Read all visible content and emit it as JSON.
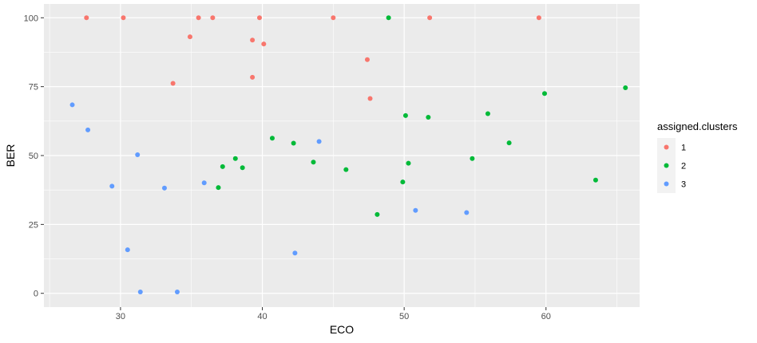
{
  "chart_data": {
    "type": "scatter",
    "xlabel": "ECO",
    "ylabel": "BER",
    "xlim": [
      24.6,
      66.6
    ],
    "ylim": [
      -5,
      105
    ],
    "x_ticks": [
      30,
      40,
      50,
      60
    ],
    "y_ticks": [
      0,
      25,
      50,
      75,
      100
    ],
    "grid": true,
    "legend": {
      "title": "assigned.clusters",
      "position": "right"
    },
    "series": [
      {
        "name": "1",
        "color": "#F8766D",
        "points": [
          [
            27.6,
            100
          ],
          [
            30.2,
            100
          ],
          [
            35.5,
            100
          ],
          [
            36.5,
            100
          ],
          [
            39.8,
            100
          ],
          [
            45.0,
            100
          ],
          [
            51.8,
            100
          ],
          [
            59.5,
            100
          ],
          [
            34.9,
            93.1
          ],
          [
            39.3,
            91.9
          ],
          [
            40.1,
            90.5
          ],
          [
            47.4,
            84.8
          ],
          [
            33.7,
            76.2
          ],
          [
            39.3,
            78.4
          ],
          [
            47.6,
            70.7
          ]
        ]
      },
      {
        "name": "2",
        "color": "#00BA38",
        "points": [
          [
            48.9,
            100
          ],
          [
            65.6,
            74.6
          ],
          [
            59.9,
            72.5
          ],
          [
            50.1,
            64.5
          ],
          [
            51.7,
            63.9
          ],
          [
            55.9,
            65.2
          ],
          [
            40.7,
            56.3
          ],
          [
            42.2,
            54.5
          ],
          [
            57.4,
            54.6
          ],
          [
            54.8,
            48.9
          ],
          [
            38.1,
            48.9
          ],
          [
            43.6,
            47.6
          ],
          [
            50.3,
            47.2
          ],
          [
            37.2,
            46.0
          ],
          [
            38.6,
            45.6
          ],
          [
            45.9,
            44.9
          ],
          [
            63.5,
            41.1
          ],
          [
            49.9,
            40.4
          ],
          [
            36.9,
            38.4
          ],
          [
            48.1,
            28.6
          ]
        ]
      },
      {
        "name": "3",
        "color": "#619CFF",
        "points": [
          [
            26.6,
            68.4
          ],
          [
            27.7,
            59.3
          ],
          [
            31.2,
            50.3
          ],
          [
            44.0,
            55.1
          ],
          [
            29.4,
            38.9
          ],
          [
            33.1,
            38.2
          ],
          [
            35.9,
            40.1
          ],
          [
            50.8,
            30.1
          ],
          [
            54.4,
            29.3
          ],
          [
            30.5,
            15.8
          ],
          [
            42.3,
            14.6
          ],
          [
            31.4,
            0.5
          ],
          [
            34.0,
            0.5
          ]
        ]
      }
    ]
  }
}
